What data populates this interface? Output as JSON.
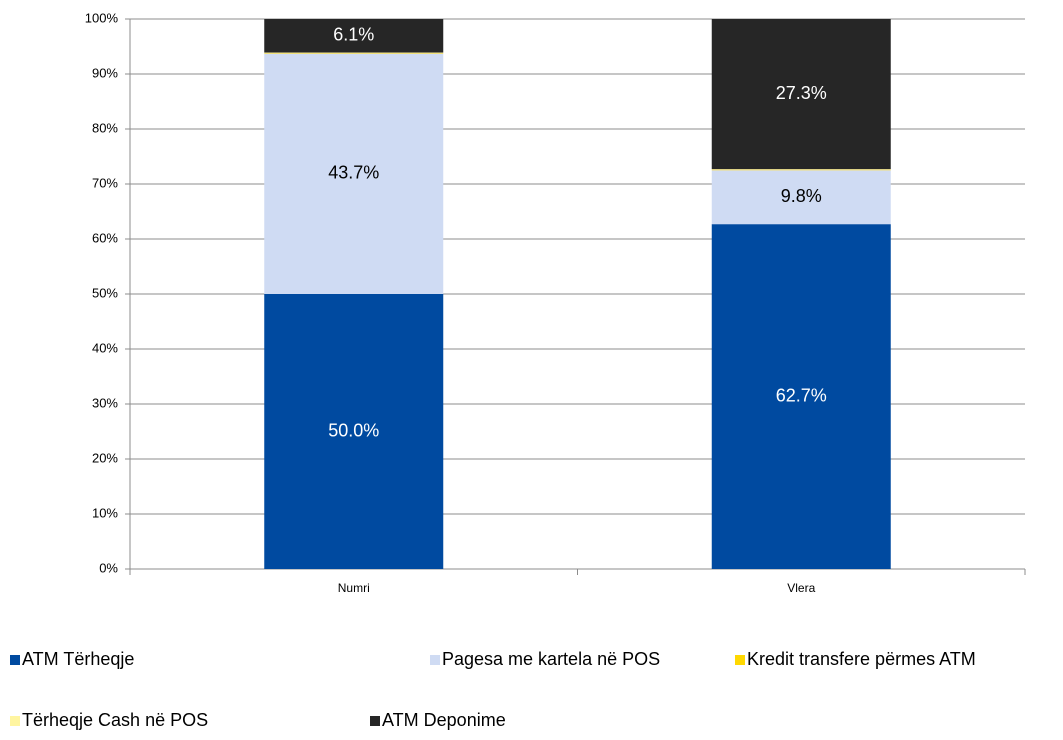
{
  "chart_data": {
    "type": "stacked_bar",
    "categories": [
      "Numri",
      "Vlera"
    ],
    "series": [
      {
        "name": "ATM Tërheqje",
        "color": "#004aa0",
        "values": [
          50.0,
          62.7
        ],
        "value_labels": [
          "50.0%",
          "62.7%"
        ],
        "label_color": "#ffffff"
      },
      {
        "name": "Pagesa me kartela në POS",
        "color": "#cfdbf3",
        "values": [
          43.7,
          9.8
        ],
        "value_labels": [
          "43.7%",
          "9.8%"
        ],
        "label_color": "#000000"
      },
      {
        "name": "Kredit transfere përmes ATM",
        "color": "#ffd800",
        "values": [
          0.1,
          0.1
        ]
      },
      {
        "name": "Tërheqje Cash në POS",
        "color": "#fff5a0",
        "values": [
          0.1,
          0.1
        ]
      },
      {
        "name": "ATM Deponime",
        "color": "#262626",
        "values": [
          6.1,
          27.3
        ],
        "value_labels": [
          "6.1%",
          "27.3%"
        ],
        "label_color": "#ffffff"
      }
    ],
    "ylim": [
      0,
      100
    ],
    "yticks": [
      {
        "value": 0,
        "label": "0%"
      },
      {
        "value": 10,
        "label": "10%"
      },
      {
        "value": 20,
        "label": "20%"
      },
      {
        "value": 30,
        "label": "30%"
      },
      {
        "value": 40,
        "label": "40%"
      },
      {
        "value": 50,
        "label": "50%"
      },
      {
        "value": 60,
        "label": "60%"
      },
      {
        "value": 70,
        "label": "70%"
      },
      {
        "value": 80,
        "label": "80%"
      },
      {
        "value": 90,
        "label": "90%"
      },
      {
        "value": 100,
        "label": "100%"
      }
    ],
    "grid": true
  }
}
